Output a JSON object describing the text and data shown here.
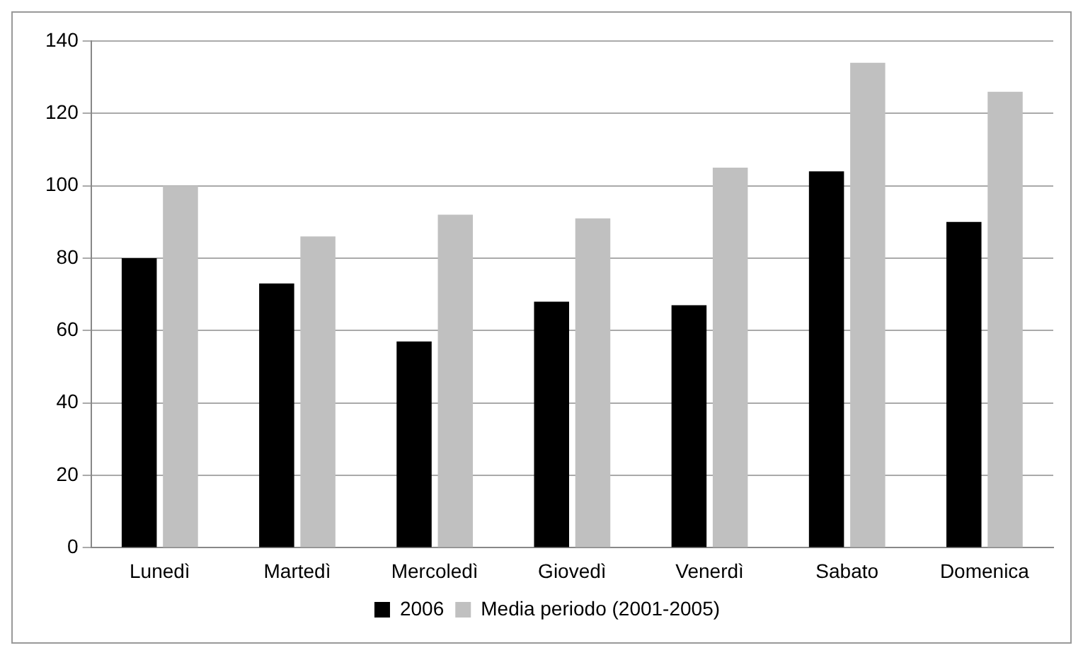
{
  "chart_data": {
    "type": "bar",
    "categories": [
      "Lunedì",
      "Martedì",
      "Mercoledì",
      "Giovedì",
      "Venerdì",
      "Sabato",
      "Domenica"
    ],
    "series": [
      {
        "name": "2006",
        "color": "#000000",
        "values": [
          80,
          73,
          57,
          68,
          67,
          104,
          90
        ]
      },
      {
        "name": "Media periodo (2001-2005)",
        "color": "#c0c0c0",
        "values": [
          100,
          86,
          92,
          91,
          105,
          134,
          126
        ]
      }
    ],
    "ylim": [
      0,
      140
    ],
    "yticks": [
      0,
      20,
      40,
      60,
      80,
      100,
      120,
      140
    ],
    "grid": "y",
    "legend": "bottom"
  }
}
